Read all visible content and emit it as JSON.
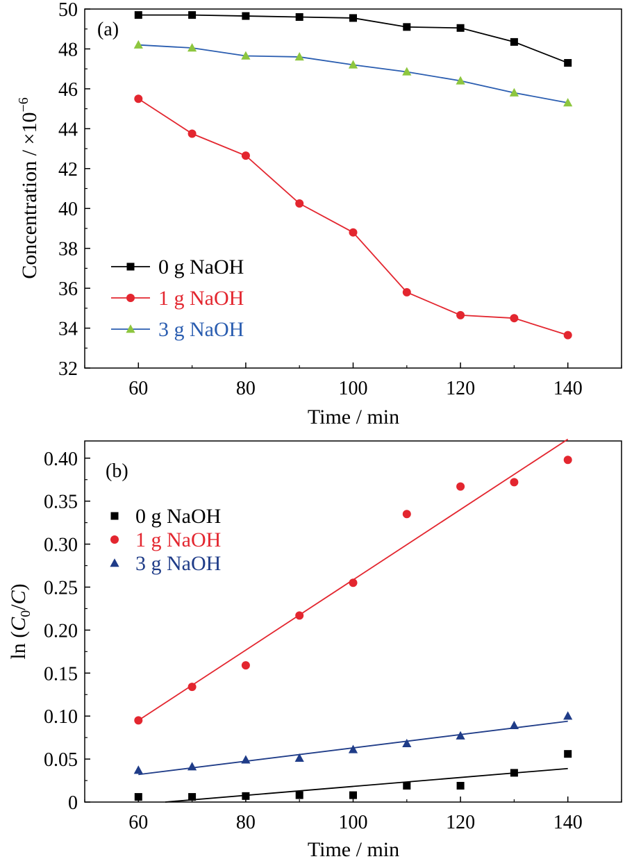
{
  "chart_data": [
    {
      "type": "line",
      "panel_label": "(a)",
      "xlabel": "Time / min",
      "ylabel": "Concentration / ×10",
      "ylabel_exponent": "−6",
      "xlim": [
        50,
        150
      ],
      "ylim": [
        32,
        50
      ],
      "xticks": [
        60,
        80,
        100,
        120,
        140
      ],
      "yticks": [
        32,
        34,
        36,
        38,
        40,
        42,
        44,
        46,
        48,
        50
      ],
      "legend_position": "lower-left",
      "series": [
        {
          "name": "0 g NaOH",
          "color": "#000000",
          "marker": "square",
          "x": [
            60,
            70,
            80,
            90,
            100,
            110,
            120,
            130,
            140
          ],
          "y": [
            49.7,
            49.7,
            49.65,
            49.6,
            49.55,
            49.1,
            49.05,
            48.35,
            47.3
          ]
        },
        {
          "name": "1 g NaOH",
          "color": "#e3262f",
          "marker": "circle",
          "x": [
            60,
            70,
            80,
            90,
            100,
            110,
            120,
            130,
            140
          ],
          "y": [
            45.5,
            43.75,
            42.65,
            40.25,
            38.8,
            35.8,
            34.65,
            34.5,
            33.65
          ]
        },
        {
          "name": "3 g NaOH",
          "color": "#2a5db0",
          "marker": "triangle",
          "marker_color": "#8dc63f",
          "x": [
            60,
            70,
            80,
            90,
            100,
            110,
            120,
            130,
            140
          ],
          "y": [
            48.2,
            48.05,
            47.65,
            47.6,
            47.2,
            46.85,
            46.4,
            45.8,
            45.3
          ]
        }
      ]
    },
    {
      "type": "scatter",
      "panel_label": "(b)",
      "xlabel": "Time / min",
      "ylabel": "ln (C0/C)",
      "xlim": [
        50,
        150
      ],
      "ylim": [
        0,
        0.42
      ],
      "xticks": [
        60,
        80,
        100,
        120,
        140
      ],
      "yticks": [
        0,
        0.05,
        0.1,
        0.15,
        0.2,
        0.25,
        0.3,
        0.35,
        0.4
      ],
      "ytick_labels": [
        "0",
        "0.05",
        "0.10",
        "0.15",
        "0.20",
        "0.25",
        "0.30",
        "0.35",
        "0.40"
      ],
      "legend_position": "upper-left",
      "series": [
        {
          "name": "0 g NaOH",
          "color": "#000000",
          "marker": "square",
          "x": [
            60,
            70,
            80,
            90,
            100,
            110,
            120,
            130,
            140
          ],
          "y": [
            0.006,
            0.006,
            0.007,
            0.008,
            0.008,
            0.019,
            0.019,
            0.034,
            0.056
          ],
          "fit": {
            "x": [
              65,
              140
            ],
            "y": [
              0.0,
              0.039
            ]
          }
        },
        {
          "name": "1 g NaOH",
          "color": "#e3262f",
          "marker": "circle",
          "x": [
            60,
            70,
            80,
            90,
            100,
            110,
            120,
            130,
            140
          ],
          "y": [
            0.095,
            0.134,
            0.159,
            0.217,
            0.255,
            0.335,
            0.367,
            0.372,
            0.398
          ],
          "fit": {
            "x": [
              60,
              140
            ],
            "y": [
              0.095,
              0.422
            ]
          }
        },
        {
          "name": "3 g NaOH",
          "color": "#1f3c88",
          "marker": "triangle",
          "x": [
            60,
            70,
            80,
            90,
            100,
            110,
            120,
            130,
            140
          ],
          "y": [
            0.037,
            0.041,
            0.049,
            0.051,
            0.061,
            0.068,
            0.077,
            0.089,
            0.1
          ],
          "fit": {
            "x": [
              60,
              140
            ],
            "y": [
              0.032,
              0.094
            ]
          }
        }
      ]
    }
  ]
}
